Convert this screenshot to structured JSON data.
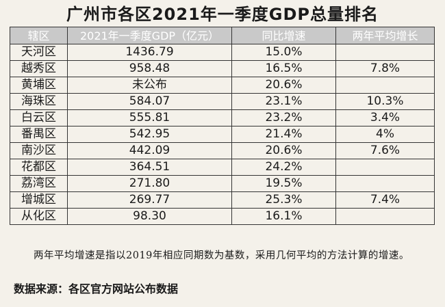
{
  "title": "广州市各区2021年一季度GDP总量排名",
  "headers": [
    "辖区",
    "2021年一季度GDP（亿元）",
    "同比增速",
    "两年平均增长"
  ],
  "rows": [
    {
      "district": "天河区",
      "gdp": "1436.79",
      "yoy": "15.0%",
      "avg2y": ""
    },
    {
      "district": "越秀区",
      "gdp": "958.48",
      "yoy": "16.5%",
      "avg2y": "7.8%"
    },
    {
      "district": "黄埔区",
      "gdp": "未公布",
      "yoy": "20.6%",
      "avg2y": ""
    },
    {
      "district": "海珠区",
      "gdp": "584.07",
      "yoy": "23.1%",
      "avg2y": "10.3%"
    },
    {
      "district": "白云区",
      "gdp": "555.81",
      "yoy": "23.2%",
      "avg2y": "3.4%"
    },
    {
      "district": "番禺区",
      "gdp": "542.95",
      "yoy": "21.4%",
      "avg2y": "4%"
    },
    {
      "district": "南沙区",
      "gdp": "442.09",
      "yoy": "20.6%",
      "avg2y": "7.6%"
    },
    {
      "district": "花都区",
      "gdp": "364.51",
      "yoy": "24.2%",
      "avg2y": ""
    },
    {
      "district": "荔湾区",
      "gdp": "271.80",
      "yoy": "19.5%",
      "avg2y": ""
    },
    {
      "district": "增城区",
      "gdp": "269.77",
      "yoy": "25.3%",
      "avg2y": "7.4%"
    },
    {
      "district": "从化区",
      "gdp": "98.30",
      "yoy": "16.1%",
      "avg2y": ""
    }
  ],
  "note": "两年平均增速是指以2019年相应同期数为基数，采用几何平均的方法计算的增速。",
  "source": "数据来源：各区官方网站公布数据"
}
